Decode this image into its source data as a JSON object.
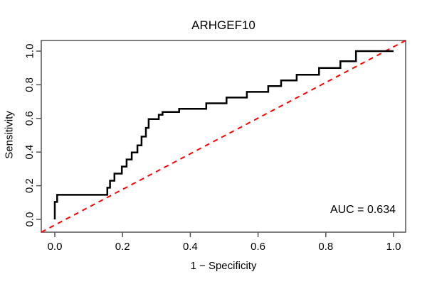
{
  "chart_data": {
    "type": "line",
    "subtype": "roc-step-curve",
    "title": "ARHGEF10",
    "xlabel": "1 − Specificity",
    "ylabel": "Sensitivity",
    "annotation": "AUC = 0.634",
    "auc_value": 0.634,
    "xlim": [
      0.0,
      1.0
    ],
    "ylim": [
      0.0,
      1.0
    ],
    "x_ticks": [
      "0.0",
      "0.2",
      "0.4",
      "0.6",
      "0.8",
      "1.0"
    ],
    "y_ticks": [
      "0.0",
      "0.2",
      "0.4",
      "0.6",
      "0.8",
      "1.0"
    ],
    "grid": false,
    "legend_position": "none",
    "colors": {
      "roc_curve": "#000000",
      "reference_line": "#ff0000",
      "axis": "#555555",
      "text": "#000000",
      "background": "#ffffff"
    },
    "series": [
      {
        "name": "ROC curve",
        "style": "step-solid",
        "points": [
          [
            0.0,
            0.0
          ],
          [
            0.0,
            0.104
          ],
          [
            0.007,
            0.104
          ],
          [
            0.007,
            0.146
          ],
          [
            0.155,
            0.146
          ],
          [
            0.155,
            0.188
          ],
          [
            0.163,
            0.188
          ],
          [
            0.163,
            0.23
          ],
          [
            0.176,
            0.23
          ],
          [
            0.176,
            0.272
          ],
          [
            0.198,
            0.272
          ],
          [
            0.198,
            0.314
          ],
          [
            0.212,
            0.314
          ],
          [
            0.212,
            0.356
          ],
          [
            0.227,
            0.356
          ],
          [
            0.227,
            0.398
          ],
          [
            0.244,
            0.398
          ],
          [
            0.244,
            0.44
          ],
          [
            0.256,
            0.44
          ],
          [
            0.256,
            0.492
          ],
          [
            0.269,
            0.492
          ],
          [
            0.269,
            0.544
          ],
          [
            0.277,
            0.544
          ],
          [
            0.277,
            0.596
          ],
          [
            0.307,
            0.596
          ],
          [
            0.307,
            0.622
          ],
          [
            0.318,
            0.622
          ],
          [
            0.318,
            0.638
          ],
          [
            0.367,
            0.638
          ],
          [
            0.367,
            0.657
          ],
          [
            0.447,
            0.657
          ],
          [
            0.447,
            0.69
          ],
          [
            0.507,
            0.69
          ],
          [
            0.507,
            0.724
          ],
          [
            0.567,
            0.724
          ],
          [
            0.567,
            0.758
          ],
          [
            0.63,
            0.758
          ],
          [
            0.63,
            0.792
          ],
          [
            0.668,
            0.792
          ],
          [
            0.668,
            0.826
          ],
          [
            0.714,
            0.826
          ],
          [
            0.714,
            0.86
          ],
          [
            0.78,
            0.86
          ],
          [
            0.78,
            0.9
          ],
          [
            0.843,
            0.9
          ],
          [
            0.843,
            0.94
          ],
          [
            0.889,
            0.94
          ],
          [
            0.889,
            1.0
          ],
          [
            1.0,
            1.0
          ]
        ]
      },
      {
        "name": "chance reference",
        "style": "dashed-diagonal",
        "points": [
          [
            0.0,
            0.0
          ],
          [
            1.0,
            1.0
          ]
        ]
      }
    ]
  }
}
